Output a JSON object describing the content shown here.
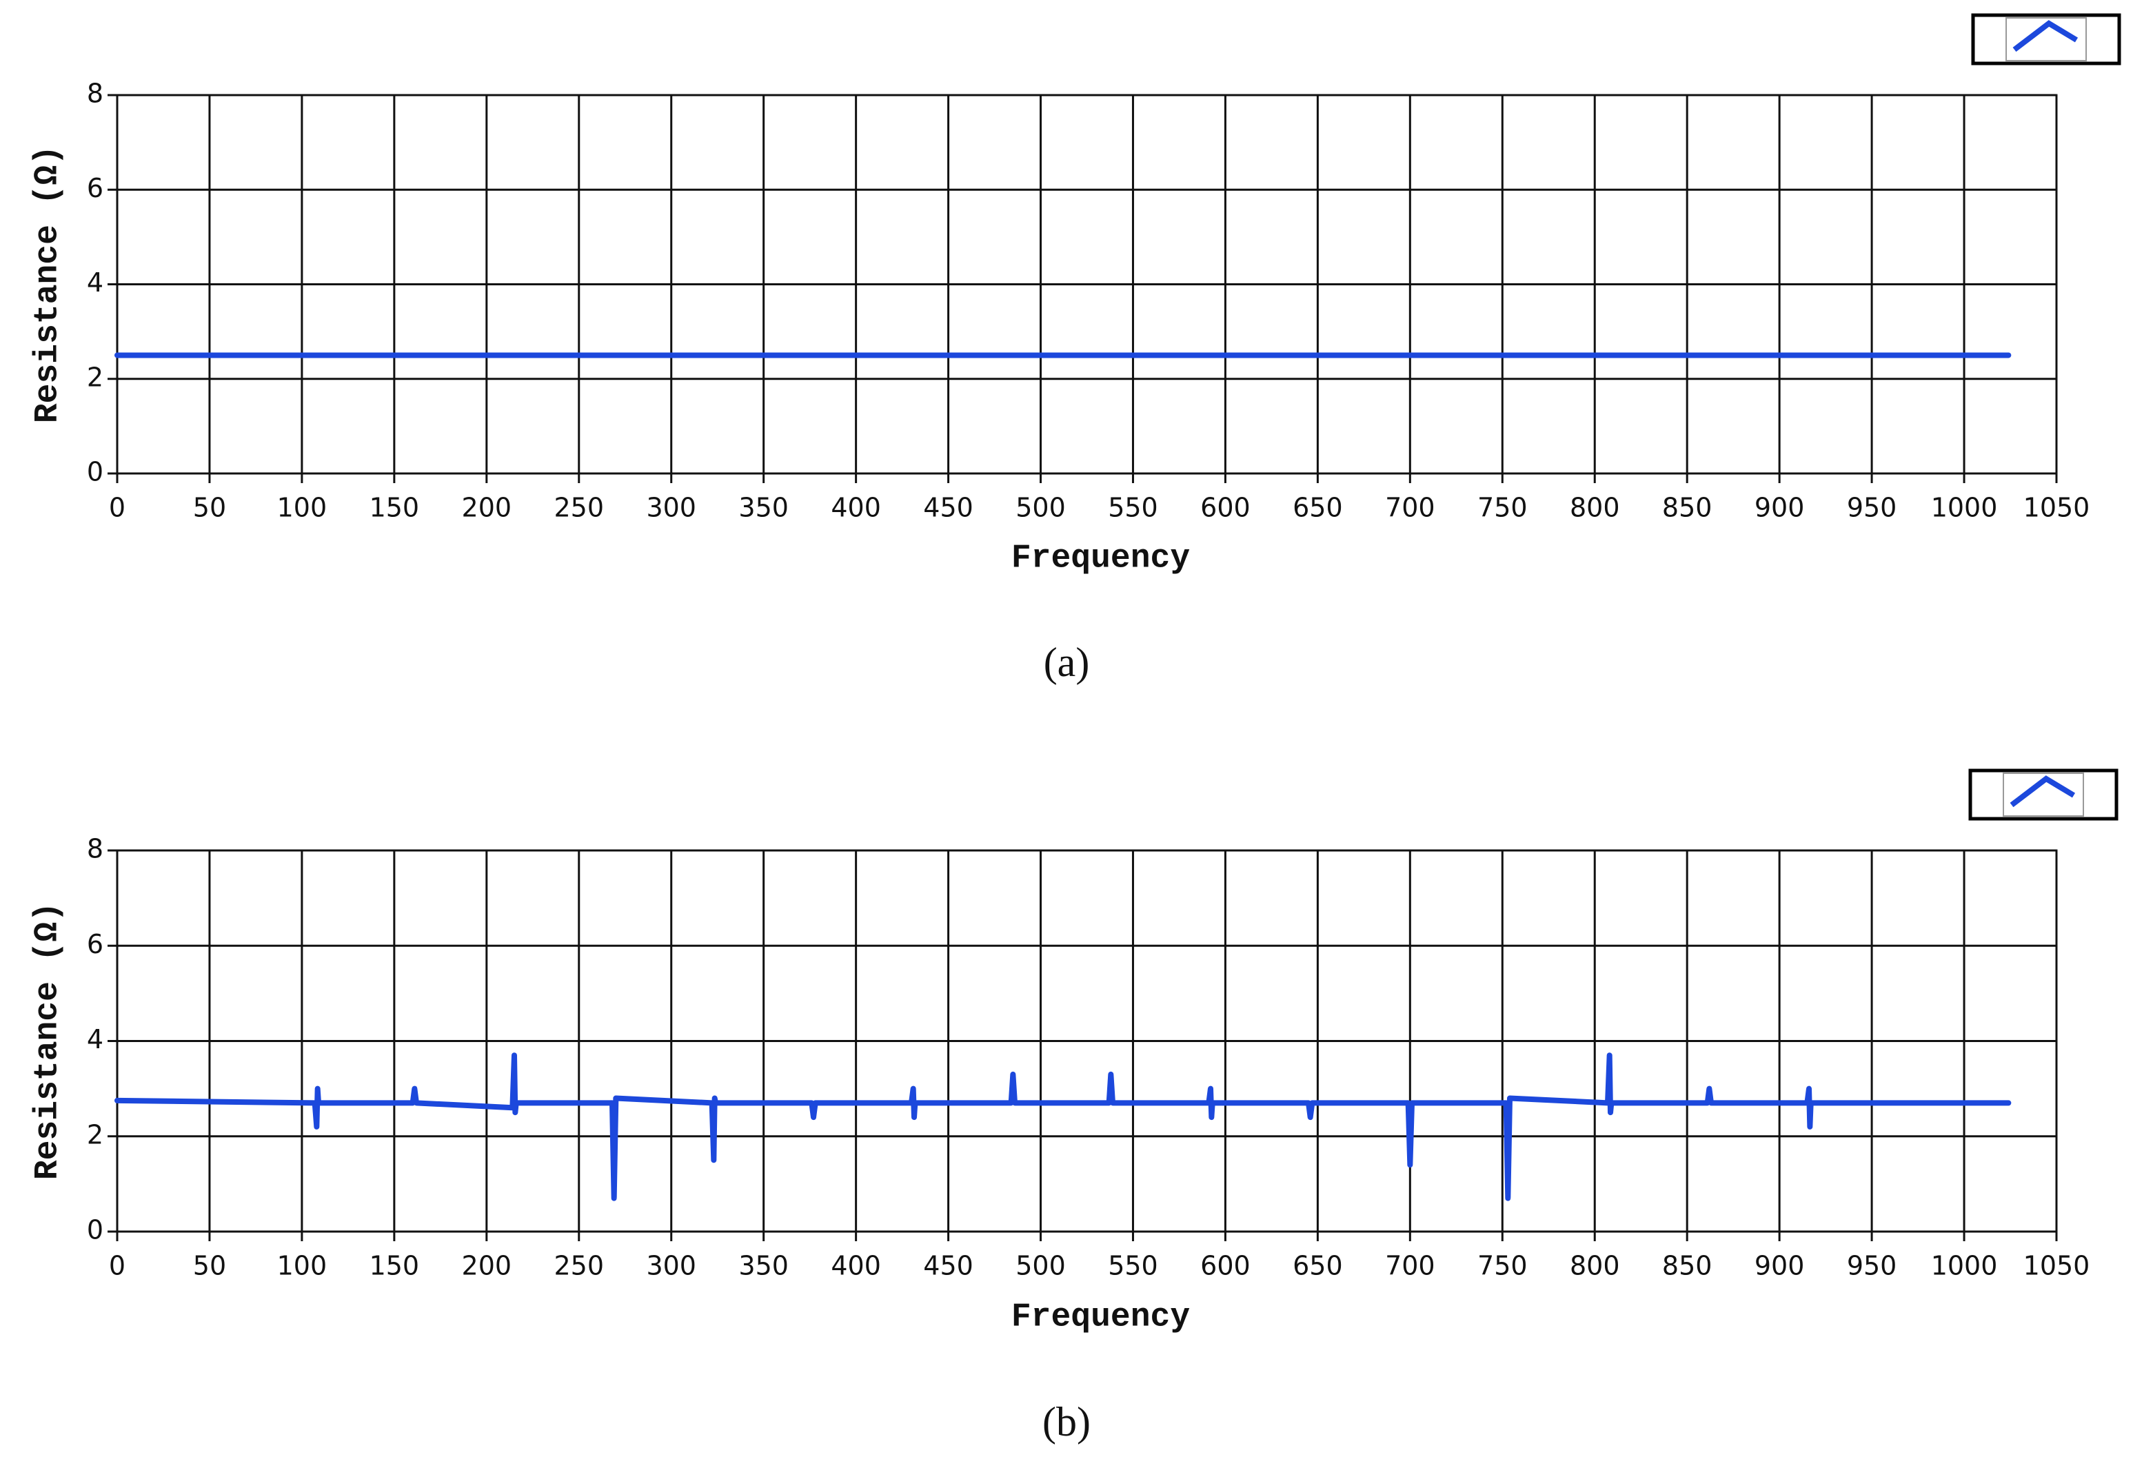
{
  "chart_data": [
    {
      "type": "line",
      "caption": "(a)",
      "xlabel": "Frequency",
      "ylabel": "Resistance (Ω)",
      "x": [
        0,
        1024
      ],
      "values": [
        2.5,
        2.5
      ],
      "color": "#1c48dc",
      "xlim": [
        0,
        1050
      ],
      "ylim": [
        0,
        8
      ],
      "xticks": [
        0,
        50,
        100,
        150,
        200,
        250,
        300,
        350,
        400,
        450,
        500,
        550,
        600,
        650,
        700,
        750,
        800,
        850,
        900,
        950,
        1000,
        1050
      ],
      "yticks": [
        0,
        2,
        4,
        6,
        8
      ],
      "grid": true
    },
    {
      "type": "line",
      "caption": "(b)",
      "xlabel": "Frequency",
      "ylabel": "Resistance (Ω)",
      "x": [
        0,
        107,
        108,
        108.5,
        109,
        160,
        161,
        162,
        214,
        215,
        215.5,
        216,
        268,
        269,
        270,
        322,
        323,
        323.5,
        324,
        376,
        377,
        378,
        430,
        431,
        431.5,
        432,
        484,
        485,
        486,
        537,
        538,
        539,
        591,
        592,
        592.5,
        593,
        645,
        646,
        647,
        699,
        700,
        701,
        752,
        753,
        754,
        807,
        808,
        808.5,
        809,
        861,
        862,
        863,
        915,
        916,
        916.5,
        917,
        1024
      ],
      "values": [
        2.75,
        2.7,
        2.2,
        3.0,
        2.7,
        2.7,
        3.0,
        2.7,
        2.6,
        3.7,
        2.5,
        2.7,
        2.7,
        0.7,
        2.8,
        2.7,
        1.5,
        2.8,
        2.7,
        2.7,
        2.4,
        2.7,
        2.7,
        3.0,
        2.4,
        2.7,
        2.7,
        3.3,
        2.7,
        2.7,
        3.3,
        2.7,
        2.7,
        3.0,
        2.4,
        2.7,
        2.7,
        2.4,
        2.7,
        2.7,
        1.4,
        2.7,
        2.7,
        0.7,
        2.8,
        2.7,
        3.7,
        2.5,
        2.7,
        2.7,
        3.0,
        2.7,
        2.7,
        3.0,
        2.2,
        2.7,
        2.7
      ],
      "color": "#1c48dc",
      "xlim": [
        0,
        1050
      ],
      "ylim": [
        0,
        8
      ],
      "xticks": [
        0,
        50,
        100,
        150,
        200,
        250,
        300,
        350,
        400,
        450,
        500,
        550,
        600,
        650,
        700,
        750,
        800,
        850,
        900,
        950,
        1000,
        1050
      ],
      "yticks": [
        0,
        2,
        4,
        6,
        8
      ],
      "grid": true
    }
  ]
}
